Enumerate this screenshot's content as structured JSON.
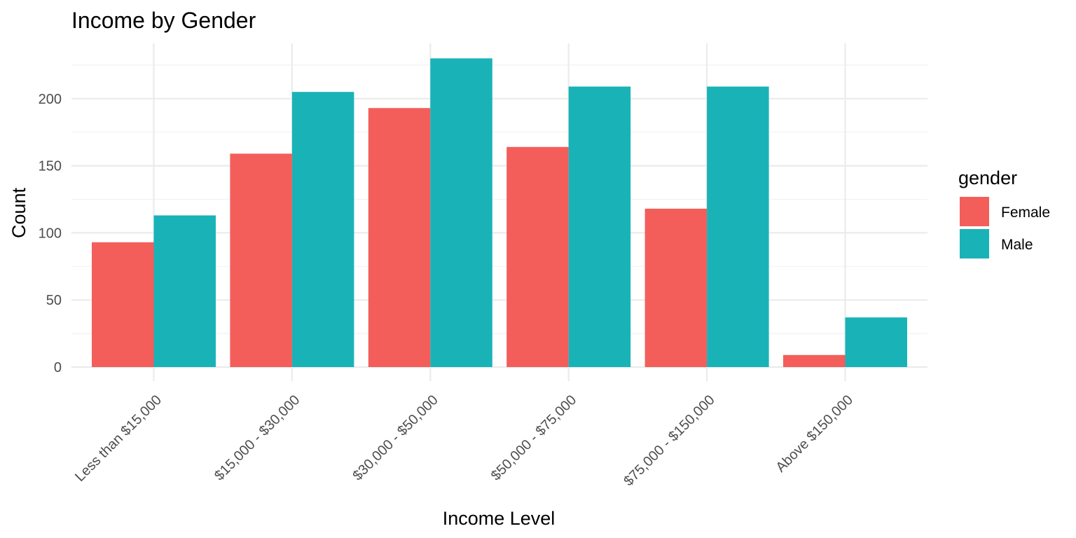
{
  "chart_data": {
    "type": "bar",
    "title": "Income by Gender",
    "xlabel": "Income Level",
    "ylabel": "Count",
    "categories": [
      "Less than $15,000",
      "$15,000 - $30,000",
      "$30,000 - $50,000",
      "$50,000 - $75,000",
      "$75,000 - $150,000",
      "Above $150,000"
    ],
    "series": [
      {
        "name": "Female",
        "color": "#F35E5A",
        "values": [
          93,
          159,
          193,
          164,
          118,
          9
        ]
      },
      {
        "name": "Male",
        "color": "#19B3B7",
        "values": [
          113,
          205,
          230,
          209,
          209,
          37
        ]
      }
    ],
    "ylim": [
      0,
      230
    ],
    "yticks": [
      0,
      50,
      100,
      150,
      200
    ],
    "ytick_labels": [
      "0",
      "50",
      "100",
      "150",
      "200"
    ],
    "grid": true,
    "legend": {
      "title": "gender",
      "position": "right"
    }
  }
}
